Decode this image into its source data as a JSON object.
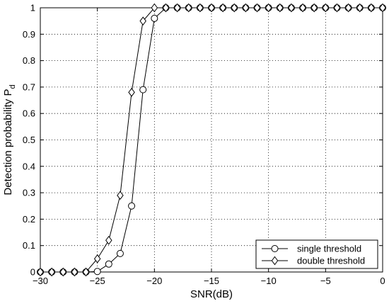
{
  "chart_data": {
    "type": "line",
    "xlabel": "SNR(dB)",
    "ylabel": "Detection probability P",
    "ylabel_subscript": "d",
    "xlim": [
      -30,
      0
    ],
    "ylim": [
      0,
      1
    ],
    "x_ticks": [
      -30,
      -25,
      -20,
      -15,
      -10,
      -5,
      0
    ],
    "y_ticks": [
      0,
      0.1,
      0.2,
      0.3,
      0.4,
      0.5,
      0.6,
      0.7,
      0.8,
      0.9,
      1
    ],
    "grid": true,
    "legend_position": "bottom-right",
    "x": [
      -30,
      -29,
      -28,
      -27,
      -26,
      -25,
      -24,
      -23,
      -22,
      -21,
      -20,
      -19,
      -18,
      -17,
      -16,
      -15,
      -14,
      -13,
      -12,
      -11,
      -10,
      -9,
      -8,
      -7,
      -6,
      -5,
      -4,
      -3,
      -2,
      -1,
      0
    ],
    "series": [
      {
        "name": "single threshold",
        "marker": "circle",
        "values": [
          0,
          0,
          0,
          0,
          0,
          0.002,
          0.03,
          0.07,
          0.25,
          0.69,
          0.96,
          1,
          1,
          1,
          1,
          1,
          1,
          1,
          1,
          1,
          1,
          1,
          1,
          1,
          1,
          1,
          1,
          1,
          1,
          1,
          1
        ]
      },
      {
        "name": "double threshold",
        "marker": "diamond",
        "values": [
          0,
          0,
          0,
          0,
          0,
          0.05,
          0.12,
          0.29,
          0.68,
          0.95,
          1,
          1,
          1,
          1,
          1,
          1,
          1,
          1,
          1,
          1,
          1,
          1,
          1,
          1,
          1,
          1,
          1,
          1,
          1,
          1,
          1
        ]
      }
    ]
  }
}
